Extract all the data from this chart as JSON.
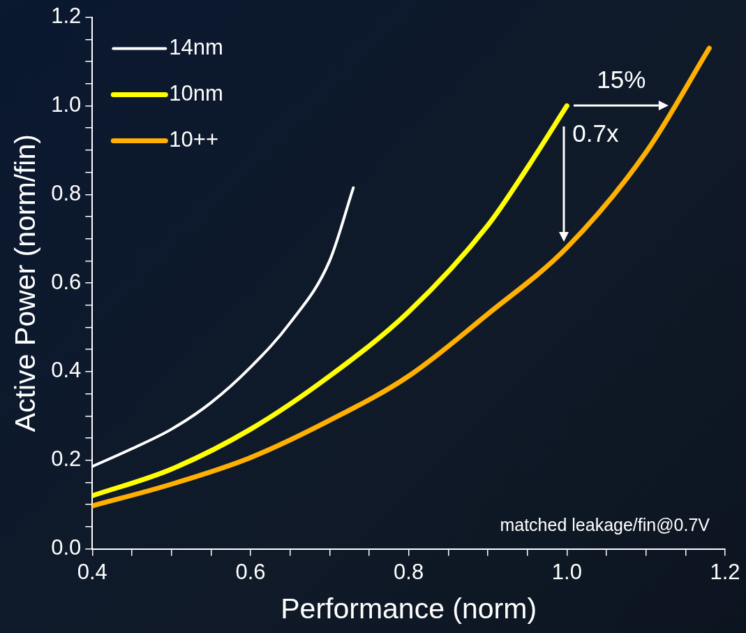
{
  "chart_data": {
    "type": "line",
    "xlabel": "Performance (norm)",
    "ylabel": "Active Power (norm/fin)",
    "xlim": [
      0.4,
      1.2
    ],
    "xticks": [
      0.4,
      {
        "value": 0.45,
        "label": null
      },
      0.6,
      {
        "value": 0.5,
        "label": null
      },
      {
        "value": 0.55,
        "label": null
      },
      {
        "value": 0.65,
        "label": null
      },
      {
        "value": 0.7,
        "label": null
      },
      {
        "value": 0.75,
        "label": null
      },
      0.8,
      {
        "value": 0.85,
        "label": null
      },
      {
        "value": 0.9,
        "label": null
      },
      {
        "value": 0.95,
        "label": null
      },
      {
        "value": 1.0,
        "label": "1.0"
      },
      {
        "value": 1.05,
        "label": null
      },
      {
        "value": 1.1,
        "label": null
      },
      {
        "value": 1.15,
        "label": null
      },
      1.2
    ],
    "ylim": [
      0,
      1.2
    ],
    "yticks": [
      {
        "value": 0,
        "label": "0.0"
      },
      {
        "value": 0.05,
        "label": null
      },
      {
        "value": 0.1,
        "label": null
      },
      {
        "value": 0.15,
        "label": null
      },
      0.2,
      {
        "value": 0.25,
        "label": null
      },
      {
        "value": 0.3,
        "label": null
      },
      {
        "value": 0.35,
        "label": null
      },
      0.4,
      {
        "value": 0.45,
        "label": null
      },
      {
        "value": 0.5,
        "label": null
      },
      {
        "value": 0.55,
        "label": null
      },
      0.6,
      {
        "value": 0.65,
        "label": null
      },
      {
        "value": 0.7,
        "label": null
      },
      {
        "value": 0.75,
        "label": null
      },
      0.8,
      {
        "value": 0.85,
        "label": null
      },
      {
        "value": 0.9,
        "label": null
      },
      {
        "value": 0.95,
        "label": null
      },
      {
        "value": 1.0,
        "label": "1.0"
      },
      {
        "value": 1.05,
        "label": null
      },
      {
        "value": 1.1,
        "label": null
      },
      {
        "value": 1.15,
        "label": null
      },
      1.2
    ],
    "grid": false,
    "legend": "top left",
    "marker": "none",
    "line_style": "solid",
    "series": [
      {
        "name": "14nm",
        "color": "#ffffff",
        "x": [
          0.4,
          0.45,
          0.5,
          0.55,
          0.6,
          0.65,
          0.7,
          0.73
        ],
        "values": [
          0.186,
          0.226,
          0.27,
          0.33,
          0.41,
          0.51,
          0.65,
          0.815
        ]
      },
      {
        "name": "10nm",
        "color": "#ffff00",
        "x": [
          0.4,
          0.5,
          0.6,
          0.7,
          0.8,
          0.9,
          0.95,
          1.0
        ],
        "values": [
          0.12,
          0.18,
          0.27,
          0.39,
          0.535,
          0.73,
          0.86,
          1.0
        ]
      },
      {
        "name": "10++",
        "color": "#ffb000",
        "x": [
          0.4,
          0.5,
          0.6,
          0.7,
          0.8,
          0.9,
          1.0,
          1.1,
          1.18
        ],
        "values": [
          0.097,
          0.146,
          0.206,
          0.29,
          0.39,
          0.53,
          0.68,
          0.895,
          1.13
        ]
      }
    ],
    "annotations": [
      "15%",
      "0.7x",
      "matched leakage/fin@0.7V"
    ]
  }
}
